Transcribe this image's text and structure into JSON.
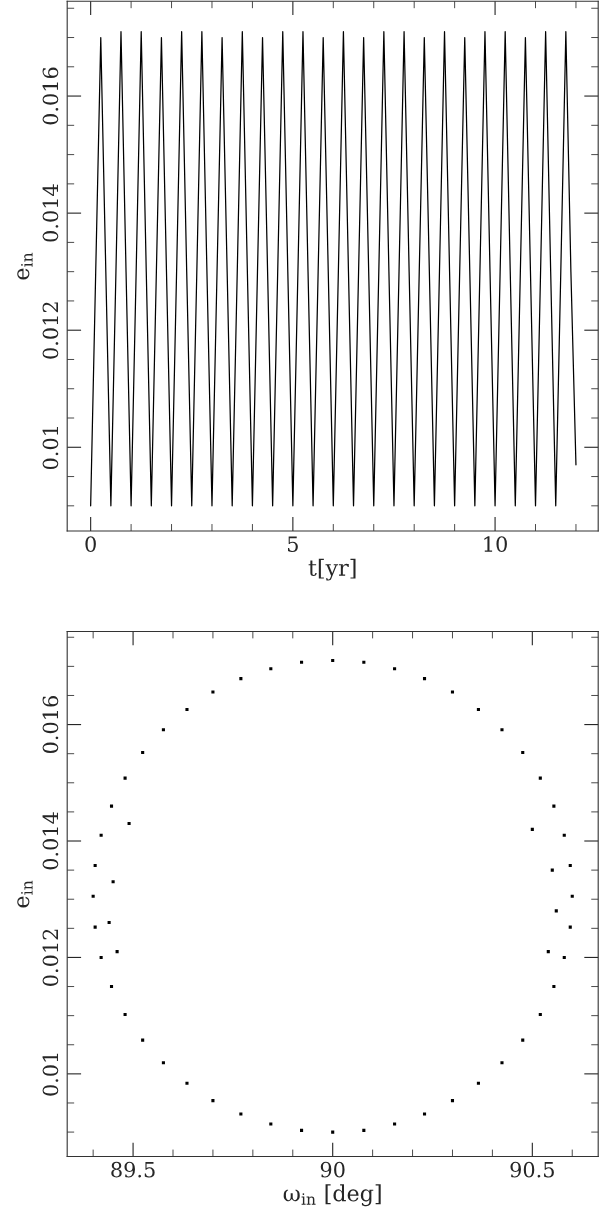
{
  "chart_data": [
    {
      "type": "line",
      "xlabel": "t[yr]",
      "ylabel": "e$_{in}$",
      "xlim": [
        -0.58,
        12.55
      ],
      "ylim": [
        0.00857,
        0.01762
      ],
      "xticks": [
        0,
        5,
        10
      ],
      "yticks": [
        0.01,
        0.012,
        0.014,
        0.016
      ],
      "grid": false,
      "legend": false,
      "marker": "none",
      "line_style": "solid",
      "series": [
        {
          "color": "#000000",
          "x": [
            0,
            0.125,
            0.25,
            0.375,
            0.5,
            0.625,
            0.75,
            0.875,
            1,
            1.125,
            1.25,
            1.375,
            1.5,
            1.625,
            1.75,
            1.875,
            2,
            2.125,
            2.25,
            2.375,
            2.5,
            2.625,
            2.75,
            2.875,
            3,
            3.125,
            3.25,
            3.375,
            3.5,
            3.625,
            3.75,
            3.875,
            4,
            4.125,
            4.25,
            4.375,
            4.5,
            4.625,
            4.75,
            4.875,
            5,
            5.125,
            5.25,
            5.375,
            5.5,
            5.625,
            5.75,
            5.875,
            6,
            6.125,
            6.25,
            6.375,
            6.5,
            6.625,
            6.75,
            6.875,
            7,
            7.125,
            7.25,
            7.375,
            7.5,
            7.625,
            7.75,
            7.875,
            8,
            8.125,
            8.25,
            8.375,
            8.5,
            8.625,
            8.75,
            8.875,
            9,
            9.125,
            9.25,
            9.375,
            9.5,
            9.625,
            9.75,
            9.875,
            10,
            10.125,
            10.25,
            10.375,
            10.5,
            10.625,
            10.75,
            10.875,
            11,
            11.125,
            11.25,
            11.375,
            11.5,
            11.625,
            11.75,
            11.875,
            12
          ],
          "values": [
            0.009,
            0.013,
            0.017,
            0.013,
            0.009,
            0.013,
            0.0171,
            0.013,
            0.009,
            0.013,
            0.0171,
            0.013,
            0.009,
            0.013,
            0.017,
            0.013,
            0.009,
            0.013,
            0.0171,
            0.013,
            0.009,
            0.013,
            0.0171,
            0.013,
            0.009,
            0.013,
            0.017,
            0.013,
            0.009,
            0.013,
            0.0171,
            0.013,
            0.009,
            0.013,
            0.017,
            0.013,
            0.009,
            0.013,
            0.0171,
            0.013,
            0.009,
            0.013,
            0.0171,
            0.013,
            0.009,
            0.013,
            0.017,
            0.013,
            0.009,
            0.013,
            0.0171,
            0.013,
            0.009,
            0.013,
            0.017,
            0.013,
            0.009,
            0.013,
            0.0171,
            0.013,
            0.009,
            0.013,
            0.0171,
            0.013,
            0.009,
            0.013,
            0.017,
            0.013,
            0.009,
            0.013,
            0.0171,
            0.013,
            0.009,
            0.013,
            0.017,
            0.013,
            0.009,
            0.013,
            0.0171,
            0.013,
            0.009,
            0.013,
            0.0171,
            0.013,
            0.009,
            0.013,
            0.017,
            0.013,
            0.009,
            0.013,
            0.0171,
            0.013,
            0.009,
            0.013,
            0.0171,
            0.013,
            0.0097
          ]
        }
      ]
    },
    {
      "type": "scatter",
      "xlabel": "ω$_{in}$ [deg]",
      "ylabel": "e$_{in}$",
      "xlim": [
        89.335,
        90.665
      ],
      "ylim": [
        0.00858,
        0.0176
      ],
      "xticks": [
        89.5,
        90,
        90.5
      ],
      "yticks": [
        0.01,
        0.012,
        0.014,
        0.016
      ],
      "grid": false,
      "legend": false,
      "marker": "square",
      "series": [
        {
          "color": "#000000",
          "x": [
            90.6,
            90.595,
            90.58,
            90.554,
            90.52,
            90.476,
            90.424,
            90.365,
            90.3,
            90.23,
            90.155,
            90.078,
            90.0,
            89.922,
            89.845,
            89.77,
            89.7,
            89.635,
            89.576,
            89.524,
            89.48,
            89.446,
            89.42,
            89.405,
            89.4,
            89.405,
            89.42,
            89.446,
            89.48,
            89.524,
            89.576,
            89.635,
            89.7,
            89.77,
            89.845,
            89.922,
            90.0,
            90.078,
            90.155,
            90.23,
            90.3,
            90.365,
            90.424,
            90.476,
            90.52,
            90.554,
            90.58,
            90.595,
            90.56,
            90.55,
            89.44,
            89.45,
            89.46,
            90.54,
            90.5,
            89.49
          ],
          "values": [
            0.01305,
            0.01358,
            0.0141,
            0.0146,
            0.01508,
            0.01552,
            0.01591,
            0.01626,
            0.01656,
            0.01679,
            0.01696,
            0.01707,
            0.0171,
            0.01707,
            0.01696,
            0.01679,
            0.01656,
            0.01626,
            0.01591,
            0.01552,
            0.01508,
            0.0146,
            0.0141,
            0.01358,
            0.01305,
            0.01252,
            0.012,
            0.0115,
            0.01102,
            0.01058,
            0.01019,
            0.00984,
            0.00954,
            0.00931,
            0.00914,
            0.00903,
            0.009,
            0.00903,
            0.00914,
            0.00931,
            0.00954,
            0.00984,
            0.01019,
            0.01058,
            0.01102,
            0.0115,
            0.012,
            0.01252,
            0.0128,
            0.0135,
            0.0126,
            0.0133,
            0.0121,
            0.0121,
            0.0142,
            0.0143
          ]
        }
      ]
    }
  ]
}
